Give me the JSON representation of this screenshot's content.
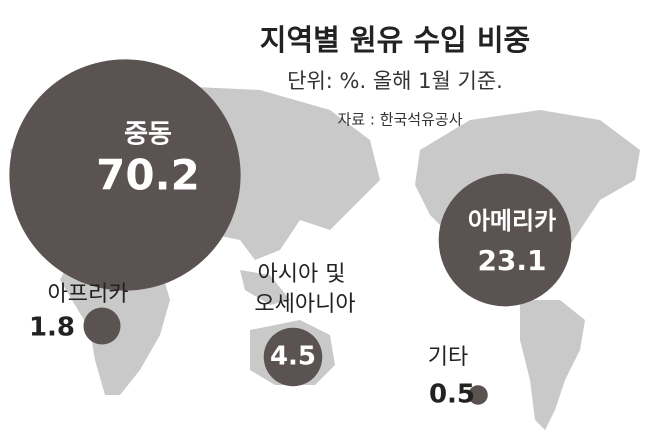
{
  "chart_data": {
    "type": "bubble",
    "title": "지역별 원유 수입 비중",
    "subtitle": "단위: %. 올해 1월 기준.",
    "source": "자료 : 한국석유공사",
    "categories": [
      "중동",
      "아메리카",
      "아시아 및 오세아니아",
      "아프리카",
      "기타"
    ],
    "values": [
      70.2,
      23.1,
      4.5,
      1.8,
      0.5
    ],
    "color": "#5a5352"
  }
}
